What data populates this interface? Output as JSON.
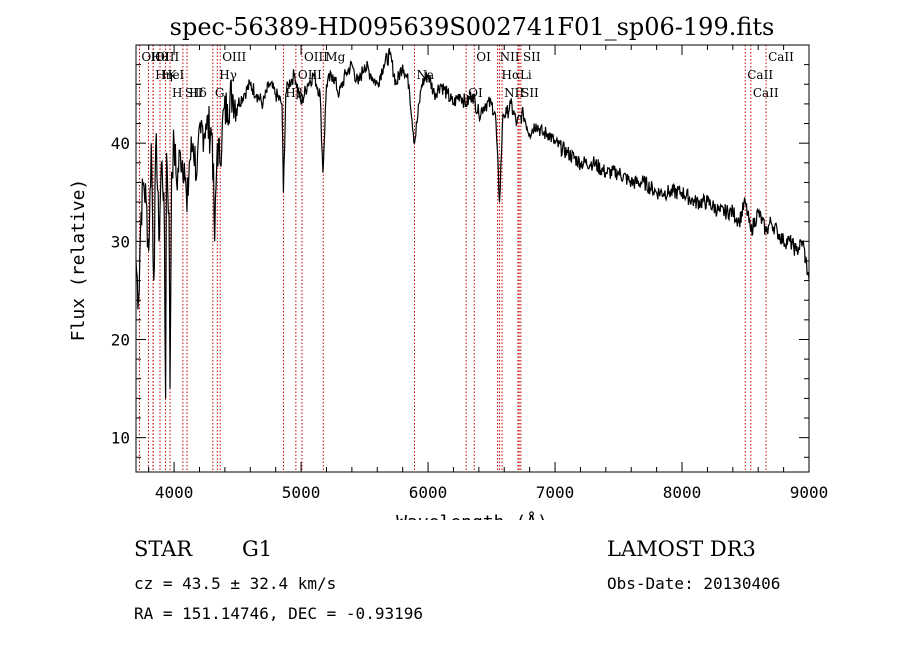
{
  "chart_data": {
    "type": "line",
    "title": "spec-56389-HD095639S002741F01_sp06-199.fits",
    "xlabel": "Wavelength (Å)",
    "ylabel": "Flux (relative)",
    "xlim": [
      3700,
      9000
    ],
    "ylim": [
      6.5,
      50
    ],
    "x_ticks": [
      4000,
      5000,
      6000,
      7000,
      8000,
      9000
    ],
    "y_ticks": [
      10,
      20,
      30,
      40
    ],
    "line_color": "#000000",
    "marker_color": "#cc0000",
    "series": [
      {
        "name": "spectrum",
        "x": [
          3700,
          3720,
          3740,
          3760,
          3780,
          3800,
          3820,
          3840,
          3860,
          3880,
          3900,
          3920,
          3933,
          3940,
          3960,
          3968,
          3980,
          4000,
          4020,
          4050,
          4080,
          4102,
          4120,
          4150,
          4180,
          4210,
          4250,
          4300,
          4320,
          4340,
          4360,
          4380,
          4420,
          4460,
          4500,
          4550,
          4600,
          4650,
          4700,
          4750,
          4800,
          4850,
          4861,
          4880,
          4900,
          4950,
          5000,
          5050,
          5100,
          5150,
          5172,
          5200,
          5250,
          5300,
          5350,
          5400,
          5450,
          5500,
          5550,
          5600,
          5650,
          5700,
          5750,
          5800,
          5850,
          5893,
          5950,
          6000,
          6050,
          6100,
          6150,
          6200,
          6250,
          6300,
          6350,
          6400,
          6450,
          6500,
          6530,
          6563,
          6590,
          6620,
          6650,
          6700,
          6750,
          6800,
          6850,
          6900,
          6950,
          7000,
          7100,
          7200,
          7300,
          7400,
          7500,
          7600,
          7700,
          7800,
          7900,
          8000,
          8100,
          8200,
          8300,
          8400,
          8450,
          8498,
          8542,
          8600,
          8662,
          8700,
          8750,
          8800,
          8850,
          8900,
          8950,
          9000
        ],
        "y": [
          28,
          24,
          33,
          36,
          34,
          29,
          40,
          26,
          41,
          30,
          38,
          35,
          14,
          39,
          33,
          15,
          37,
          40,
          36,
          39,
          38,
          33,
          38,
          40,
          37,
          41,
          42,
          41,
          30,
          40,
          38,
          42,
          44,
          45,
          44,
          45,
          46,
          45,
          44,
          46,
          45,
          44,
          35,
          45,
          46,
          47,
          44,
          46,
          47,
          45,
          37,
          46,
          47,
          45,
          47,
          48,
          46,
          48,
          47,
          46,
          48,
          49,
          46,
          48,
          46,
          40,
          46,
          47,
          45,
          46,
          45,
          44,
          45,
          44,
          45,
          43,
          44,
          44,
          43,
          34,
          43,
          43,
          44,
          42,
          43,
          41,
          42,
          41,
          41,
          40,
          39,
          38,
          38,
          37,
          37,
          36,
          36,
          35,
          35,
          35,
          34,
          34,
          33,
          33,
          32,
          34,
          31,
          33,
          31,
          32,
          31,
          30,
          30,
          29,
          30,
          26
        ]
      }
    ],
    "lines": [
      {
        "name": "Hθ",
        "wavelength": 3798
      },
      {
        "name": "K",
        "wavelength": 3933
      },
      {
        "name": "Hδ",
        "wavelength": 4102
      },
      {
        "name": "OII",
        "wavelength": 3727
      },
      {
        "name": "HeI",
        "wavelength": 3889
      },
      {
        "name": "SII",
        "wavelength": 4069
      },
      {
        "name": "OIII",
        "wavelength": 3835
      },
      {
        "name": "Hη",
        "wavelength": 3835
      },
      {
        "name": "H",
        "wavelength": 3968
      },
      {
        "name": "OIII",
        "wavelength": 4363
      },
      {
        "name": "Hγ",
        "wavelength": 4340
      },
      {
        "name": "G",
        "wavelength": 4305
      },
      {
        "name": "OIII",
        "wavelength": 5007
      },
      {
        "name": "OIII",
        "wavelength": 4959
      },
      {
        "name": "Hβ",
        "wavelength": 4861
      },
      {
        "name": "Mg",
        "wavelength": 5175
      },
      {
        "name": "Na",
        "wavelength": 5893
      },
      {
        "name": "OI",
        "wavelength": 6300
      },
      {
        "name": "OI",
        "wavelength": 6364
      },
      {
        "name": "Hα",
        "wavelength": 6563
      },
      {
        "name": "SII",
        "wavelength": 6717
      },
      {
        "name": "NII",
        "wavelength": 6548
      },
      {
        "name": "Li",
        "wavelength": 6708
      },
      {
        "name": "NII",
        "wavelength": 6583
      },
      {
        "name": "SII",
        "wavelength": 6731
      },
      {
        "name": "CaII",
        "wavelength": 8498
      },
      {
        "name": "CaII",
        "wavelength": 8542
      },
      {
        "name": "CaII",
        "wavelength": 8662
      }
    ]
  },
  "info": {
    "object_class": "STAR",
    "subclass": "G1",
    "survey": "LAMOST DR3",
    "redshift": "cz = 43.5 ± 32.4 km/s",
    "obs_date": "Obs-Date: 20130406",
    "coords": "RA = 151.14746, DEC =  -0.93196"
  }
}
